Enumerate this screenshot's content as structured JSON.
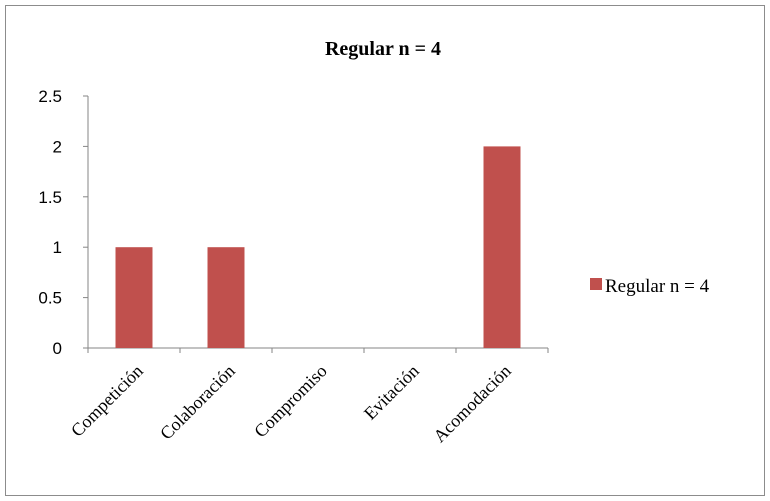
{
  "chart_data": {
    "type": "bar",
    "title": "Regular n = 4",
    "categories": [
      "Competición",
      "Colaboración",
      "Compromiso",
      "Evitación",
      "Acomodación"
    ],
    "series": [
      {
        "name": "Regular n = 4",
        "values": [
          1,
          1,
          0,
          0,
          2
        ],
        "color": "#C0504D"
      }
    ],
    "xlabel": "",
    "ylabel": "",
    "ylim": [
      0,
      2.5
    ],
    "yticks": [
      "0",
      "0.5",
      "1",
      "1.5",
      "2",
      "2.5"
    ],
    "grid": false,
    "legend_position": "right"
  }
}
